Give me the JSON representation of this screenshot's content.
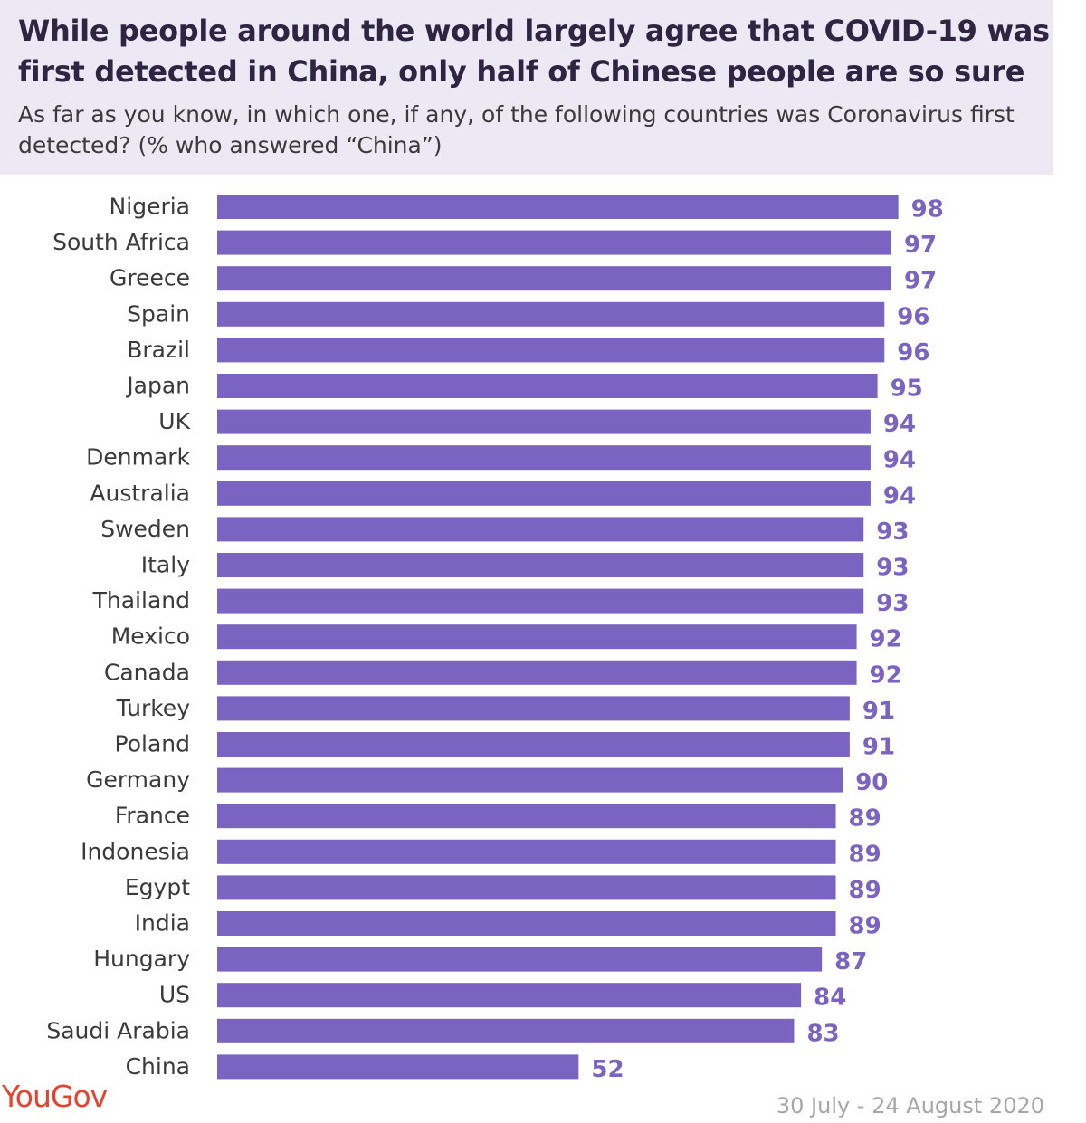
{
  "title": "While people around the world largely agree that COVID-19 was first detected in China, only half of Chinese people are so sure",
  "subtitle": "As far as you know, in which one, if any, of the following countries was Coronavirus first detected? (% who answered “China”)",
  "logo_text": "YouGov",
  "date_range": "30 July - 24 August 2020",
  "colors": {
    "bar": "#7a63c1",
    "value_label": "#7a63c1",
    "header_bg": "#ece9f5",
    "logo": "#e9412e"
  },
  "chart_data": {
    "type": "bar",
    "orientation": "horizontal",
    "categories": [
      "Nigeria",
      "South Africa",
      "Greece",
      "Spain",
      "Brazil",
      "Japan",
      "UK",
      "Denmark",
      "Australia",
      "Sweden",
      "Italy",
      "Thailand",
      "Mexico",
      "Canada",
      "Turkey",
      "Poland",
      "Germany",
      "France",
      "Indonesia",
      "Egypt",
      "India",
      "Hungary",
      "US",
      "Saudi Arabia",
      "China"
    ],
    "values": [
      98,
      97,
      97,
      96,
      96,
      95,
      94,
      94,
      94,
      93,
      93,
      93,
      92,
      92,
      91,
      91,
      90,
      89,
      89,
      89,
      89,
      87,
      84,
      83,
      52
    ],
    "xlim": [
      0,
      100
    ],
    "grid": false,
    "legend": "none",
    "data_labels": true
  }
}
